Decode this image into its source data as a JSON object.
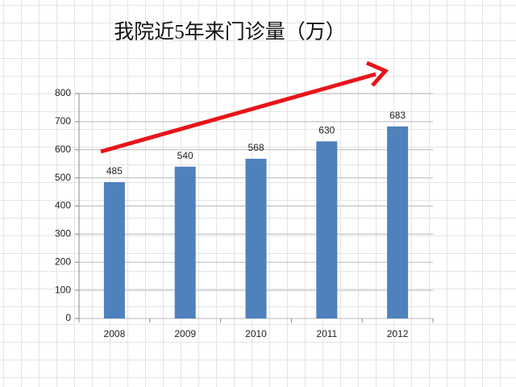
{
  "chart_data": {
    "type": "bar",
    "title": "我院近5年来门诊量（万）",
    "categories": [
      "2008",
      "2009",
      "2010",
      "2011",
      "2012"
    ],
    "values": [
      485,
      540,
      568,
      630,
      683
    ],
    "color": "#4f81bd",
    "ylim": [
      0,
      800
    ],
    "yticks": [
      0,
      100,
      200,
      300,
      400,
      500,
      600,
      700,
      800
    ],
    "grid": true
  }
}
